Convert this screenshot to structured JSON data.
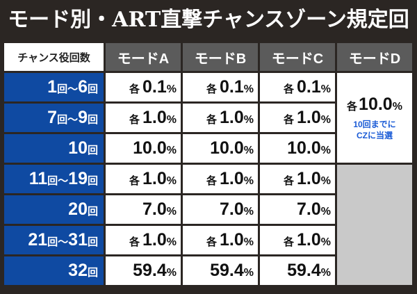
{
  "title": "モード別・ART直撃チャンスゾーン規定回数",
  "header": {
    "corner": "チャンス役回数",
    "modes": [
      "モードA",
      "モードB",
      "モードC",
      "モードD"
    ]
  },
  "rows": [
    {
      "label_a": "1",
      "sep": "回〜",
      "label_b": "6",
      "suffix": "回",
      "cells": [
        {
          "each": "各",
          "num": "0.1",
          "pct": "%"
        },
        {
          "each": "各",
          "num": "0.1",
          "pct": "%"
        },
        {
          "each": "各",
          "num": "0.1",
          "pct": "%"
        }
      ]
    },
    {
      "label_a": "7",
      "sep": "回〜",
      "label_b": "9",
      "suffix": "回",
      "cells": [
        {
          "each": "各",
          "num": "1.0",
          "pct": "%"
        },
        {
          "each": "各",
          "num": "1.0",
          "pct": "%"
        },
        {
          "each": "各",
          "num": "1.0",
          "pct": "%"
        }
      ]
    },
    {
      "label_a": "10",
      "sep": "",
      "label_b": "",
      "suffix": "回",
      "cells": [
        {
          "each": "",
          "num": "10.0",
          "pct": "%"
        },
        {
          "each": "",
          "num": "10.0",
          "pct": "%"
        },
        {
          "each": "",
          "num": "10.0",
          "pct": "%"
        }
      ]
    },
    {
      "label_a": "11",
      "sep": "回〜",
      "label_b": "19",
      "suffix": "回",
      "cells": [
        {
          "each": "各",
          "num": "1.0",
          "pct": "%"
        },
        {
          "each": "各",
          "num": "1.0",
          "pct": "%"
        },
        {
          "each": "各",
          "num": "1.0",
          "pct": "%"
        }
      ]
    },
    {
      "label_a": "20",
      "sep": "",
      "label_b": "",
      "suffix": "回",
      "cells": [
        {
          "each": "",
          "num": "7.0",
          "pct": "%"
        },
        {
          "each": "",
          "num": "7.0",
          "pct": "%"
        },
        {
          "each": "",
          "num": "7.0",
          "pct": "%"
        }
      ]
    },
    {
      "label_a": "21",
      "sep": "回〜",
      "label_b": "31",
      "suffix": "回",
      "cells": [
        {
          "each": "各",
          "num": "1.0",
          "pct": "%"
        },
        {
          "each": "各",
          "num": "1.0",
          "pct": "%"
        },
        {
          "each": "各",
          "num": "1.0",
          "pct": "%"
        }
      ]
    },
    {
      "label_a": "32",
      "sep": "",
      "label_b": "",
      "suffix": "回",
      "cells": [
        {
          "each": "",
          "num": "59.4",
          "pct": "%"
        },
        {
          "each": "",
          "num": "59.4",
          "pct": "%"
        },
        {
          "each": "",
          "num": "59.4",
          "pct": "%"
        }
      ]
    }
  ],
  "mode_d": {
    "each": "各",
    "num": "10.0",
    "pct": "%",
    "note_line1": "10回までに",
    "note_line2": "CZに当選"
  },
  "colors": {
    "background": "#2b2623",
    "row_header": "#0f4aa2",
    "column_header": "#5b5b5b",
    "empty_cell": "#c9c9c9",
    "note_text": "#1a5bd6"
  }
}
